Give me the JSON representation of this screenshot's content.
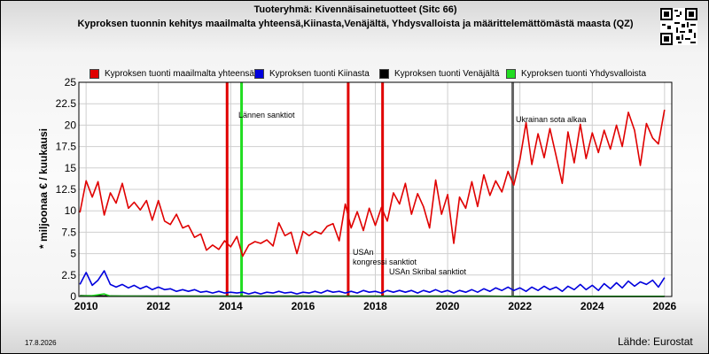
{
  "header": {
    "title_line1": "Tuoteryhmä: Kivennäisainetuotteet (Sitc 66)",
    "title_line2": "Kyproksen tuonnin kehitys maailmalta yhteensä,Kiinasta,Venäjältä, Yhdysvalloista ja määrittelemättömästä maasta (QZ)"
  },
  "footer": {
    "date": "17.8.2026",
    "source": "Lähde: Eurostat"
  },
  "qr_icon": "qr-code-icon",
  "chart_data": {
    "type": "line",
    "title": "Kyproksen tuonnin kehitys maailmalta yhteensä,Kiinasta,Venäjältä, Yhdysvalloista ja määrittelemättömästä maasta (QZ)",
    "ylabel": "* miljoonaa € / kuukausi",
    "xlim": [
      2009.8,
      2026.2
    ],
    "ylim": [
      0,
      25
    ],
    "x_ticks": [
      "2010",
      "2012",
      "2014",
      "2016",
      "2018",
      "2020",
      "2022",
      "2024",
      "2026"
    ],
    "y_ticks": [
      "0",
      "2.5",
      "5",
      "7.5",
      "10",
      "12.5",
      "15",
      "17.5",
      "20",
      "22.5",
      "25"
    ],
    "grid": true,
    "legend_position": "top",
    "annotations": [
      {
        "x": 2013.9,
        "label": "",
        "color": "#e00000"
      },
      {
        "x": 2014.3,
        "label": "Lännen sanktiot",
        "color": "#22dd22"
      },
      {
        "x": 2017.25,
        "label": "USAn\nkongressi sanktiot",
        "color": "#e00000"
      },
      {
        "x": 2018.2,
        "label": "USAn Skribal sanktiot",
        "color": "#e00000"
      },
      {
        "x": 2021.8,
        "label": "Ukrainan sota alkaa",
        "color": "#666666"
      }
    ],
    "series": [
      {
        "name": "Kyproksen tuonti maailmalta yhteensä",
        "color": "#e00000",
        "points": [
          [
            2009.83,
            9.8
          ],
          [
            2010.0,
            13.5
          ],
          [
            2010.17,
            11.6
          ],
          [
            2010.33,
            13.4
          ],
          [
            2010.5,
            9.5
          ],
          [
            2010.67,
            12.1
          ],
          [
            2010.83,
            10.9
          ],
          [
            2011.0,
            13.2
          ],
          [
            2011.17,
            10.3
          ],
          [
            2011.33,
            11.0
          ],
          [
            2011.5,
            10.1
          ],
          [
            2011.67,
            11.2
          ],
          [
            2011.83,
            8.9
          ],
          [
            2012.0,
            11.2
          ],
          [
            2012.17,
            8.8
          ],
          [
            2012.33,
            8.4
          ],
          [
            2012.5,
            9.6
          ],
          [
            2012.67,
            8.0
          ],
          [
            2012.83,
            8.3
          ],
          [
            2013.0,
            6.9
          ],
          [
            2013.17,
            7.3
          ],
          [
            2013.33,
            5.4
          ],
          [
            2013.5,
            6.0
          ],
          [
            2013.67,
            5.5
          ],
          [
            2013.83,
            6.5
          ],
          [
            2014.0,
            5.8
          ],
          [
            2014.17,
            7.0
          ],
          [
            2014.33,
            4.7
          ],
          [
            2014.5,
            6.0
          ],
          [
            2014.67,
            6.4
          ],
          [
            2014.83,
            6.2
          ],
          [
            2015.0,
            6.6
          ],
          [
            2015.17,
            5.9
          ],
          [
            2015.33,
            8.6
          ],
          [
            2015.5,
            7.1
          ],
          [
            2015.67,
            7.5
          ],
          [
            2015.83,
            5.0
          ],
          [
            2016.0,
            7.6
          ],
          [
            2016.17,
            7.1
          ],
          [
            2016.33,
            7.6
          ],
          [
            2016.5,
            7.3
          ],
          [
            2016.67,
            8.2
          ],
          [
            2016.83,
            8.5
          ],
          [
            2017.0,
            6.5
          ],
          [
            2017.17,
            10.8
          ],
          [
            2017.33,
            8.0
          ],
          [
            2017.5,
            9.9
          ],
          [
            2017.67,
            7.7
          ],
          [
            2017.83,
            10.3
          ],
          [
            2018.0,
            8.3
          ],
          [
            2018.17,
            10.4
          ],
          [
            2018.33,
            8.8
          ],
          [
            2018.5,
            12.1
          ],
          [
            2018.67,
            10.8
          ],
          [
            2018.83,
            13.2
          ],
          [
            2019.0,
            9.6
          ],
          [
            2019.17,
            12.0
          ],
          [
            2019.33,
            10.5
          ],
          [
            2019.5,
            8.0
          ],
          [
            2019.67,
            13.6
          ],
          [
            2019.83,
            9.6
          ],
          [
            2020.0,
            11.9
          ],
          [
            2020.17,
            6.2
          ],
          [
            2020.33,
            11.6
          ],
          [
            2020.5,
            10.3
          ],
          [
            2020.67,
            13.4
          ],
          [
            2020.83,
            10.5
          ],
          [
            2021.0,
            14.2
          ],
          [
            2021.17,
            11.8
          ],
          [
            2021.33,
            13.5
          ],
          [
            2021.5,
            12.2
          ],
          [
            2021.67,
            14.6
          ],
          [
            2021.83,
            13.0
          ],
          [
            2022.0,
            16.0
          ],
          [
            2022.17,
            20.3
          ],
          [
            2022.33,
            15.4
          ],
          [
            2022.5,
            19.0
          ],
          [
            2022.67,
            16.2
          ],
          [
            2022.83,
            19.6
          ],
          [
            2023.0,
            16.4
          ],
          [
            2023.17,
            13.2
          ],
          [
            2023.33,
            19.2
          ],
          [
            2023.5,
            15.6
          ],
          [
            2023.67,
            20.1
          ],
          [
            2023.83,
            16.1
          ],
          [
            2024.0,
            19.1
          ],
          [
            2024.17,
            16.8
          ],
          [
            2024.33,
            19.4
          ],
          [
            2024.5,
            17.2
          ],
          [
            2024.67,
            20.0
          ],
          [
            2024.83,
            17.5
          ],
          [
            2025.0,
            21.5
          ],
          [
            2025.17,
            19.4
          ],
          [
            2025.33,
            15.3
          ],
          [
            2025.5,
            20.2
          ],
          [
            2025.67,
            18.5
          ],
          [
            2025.83,
            17.8
          ],
          [
            2026.0,
            21.8
          ]
        ]
      },
      {
        "name": "Kyproksen tuonti Kiinasta",
        "color": "#0000dd",
        "points": [
          [
            2009.83,
            1.4
          ],
          [
            2010.0,
            2.8
          ],
          [
            2010.17,
            1.3
          ],
          [
            2010.33,
            1.9
          ],
          [
            2010.5,
            3.0
          ],
          [
            2010.67,
            1.4
          ],
          [
            2010.83,
            1.1
          ],
          [
            2011.0,
            1.4
          ],
          [
            2011.17,
            1.0
          ],
          [
            2011.33,
            1.3
          ],
          [
            2011.5,
            0.9
          ],
          [
            2011.67,
            1.2
          ],
          [
            2011.83,
            0.8
          ],
          [
            2012.0,
            1.1
          ],
          [
            2012.17,
            0.8
          ],
          [
            2012.33,
            0.9
          ],
          [
            2012.5,
            0.6
          ],
          [
            2012.67,
            0.8
          ],
          [
            2012.83,
            0.6
          ],
          [
            2013.0,
            0.8
          ],
          [
            2013.17,
            0.5
          ],
          [
            2013.33,
            0.6
          ],
          [
            2013.5,
            0.4
          ],
          [
            2013.67,
            0.6
          ],
          [
            2013.83,
            0.4
          ],
          [
            2014.0,
            0.5
          ],
          [
            2014.17,
            0.4
          ],
          [
            2014.33,
            0.5
          ],
          [
            2014.5,
            0.3
          ],
          [
            2014.67,
            0.5
          ],
          [
            2014.83,
            0.3
          ],
          [
            2015.0,
            0.5
          ],
          [
            2015.17,
            0.4
          ],
          [
            2015.33,
            0.6
          ],
          [
            2015.5,
            0.4
          ],
          [
            2015.67,
            0.5
          ],
          [
            2015.83,
            0.3
          ],
          [
            2016.0,
            0.5
          ],
          [
            2016.17,
            0.4
          ],
          [
            2016.33,
            0.6
          ],
          [
            2016.5,
            0.4
          ],
          [
            2016.67,
            0.7
          ],
          [
            2016.83,
            0.5
          ],
          [
            2017.0,
            0.6
          ],
          [
            2017.17,
            0.4
          ],
          [
            2017.33,
            0.6
          ],
          [
            2017.5,
            0.4
          ],
          [
            2017.67,
            0.7
          ],
          [
            2017.83,
            0.5
          ],
          [
            2018.0,
            0.6
          ],
          [
            2018.17,
            0.4
          ],
          [
            2018.33,
            0.7
          ],
          [
            2018.5,
            0.5
          ],
          [
            2018.67,
            0.7
          ],
          [
            2018.83,
            0.5
          ],
          [
            2019.0,
            0.7
          ],
          [
            2019.17,
            0.4
          ],
          [
            2019.33,
            0.7
          ],
          [
            2019.5,
            0.5
          ],
          [
            2019.67,
            0.8
          ],
          [
            2019.83,
            0.5
          ],
          [
            2020.0,
            0.7
          ],
          [
            2020.17,
            0.4
          ],
          [
            2020.33,
            0.7
          ],
          [
            2020.5,
            0.5
          ],
          [
            2020.67,
            0.8
          ],
          [
            2020.83,
            0.5
          ],
          [
            2021.0,
            0.9
          ],
          [
            2021.17,
            0.6
          ],
          [
            2021.33,
            1.0
          ],
          [
            2021.5,
            0.7
          ],
          [
            2021.67,
            1.1
          ],
          [
            2021.83,
            0.7
          ],
          [
            2022.0,
            1.0
          ],
          [
            2022.17,
            0.6
          ],
          [
            2022.33,
            1.1
          ],
          [
            2022.5,
            0.7
          ],
          [
            2022.67,
            1.2
          ],
          [
            2022.83,
            0.8
          ],
          [
            2023.0,
            1.1
          ],
          [
            2023.17,
            0.6
          ],
          [
            2023.33,
            1.2
          ],
          [
            2023.5,
            0.8
          ],
          [
            2023.67,
            1.4
          ],
          [
            2023.83,
            0.8
          ],
          [
            2024.0,
            1.3
          ],
          [
            2024.17,
            0.7
          ],
          [
            2024.33,
            1.5
          ],
          [
            2024.5,
            0.9
          ],
          [
            2024.67,
            1.6
          ],
          [
            2024.83,
            1.0
          ],
          [
            2025.0,
            1.8
          ],
          [
            2025.17,
            1.2
          ],
          [
            2025.33,
            1.7
          ],
          [
            2025.5,
            1.4
          ],
          [
            2025.67,
            1.9
          ],
          [
            2025.83,
            1.1
          ],
          [
            2026.0,
            2.2
          ]
        ]
      },
      {
        "name": "Kyproksen tuonti Venäjältä",
        "color": "#000000",
        "points": [
          [
            2009.83,
            0.1
          ],
          [
            2011.0,
            0.05
          ],
          [
            2012.0,
            0.05
          ],
          [
            2013.0,
            0.05
          ],
          [
            2014.0,
            0.05
          ],
          [
            2015.0,
            0.05
          ],
          [
            2016.0,
            0.05
          ],
          [
            2017.0,
            0.05
          ],
          [
            2018.0,
            0.05
          ],
          [
            2019.0,
            0.05
          ],
          [
            2020.0,
            0.05
          ],
          [
            2021.0,
            0.05
          ],
          [
            2022.0,
            0.0
          ],
          [
            2023.0,
            0.0
          ],
          [
            2024.0,
            0.0
          ],
          [
            2025.0,
            0.0
          ],
          [
            2026.0,
            0.0
          ]
        ]
      },
      {
        "name": "Kyproksen tuonti Yhdysvalloista",
        "color": "#22dd22",
        "points": [
          [
            2009.83,
            0.05
          ],
          [
            2010.17,
            0.1
          ],
          [
            2010.5,
            0.3
          ],
          [
            2010.67,
            0.05
          ],
          [
            2012.0,
            0.02
          ],
          [
            2014.0,
            0.02
          ],
          [
            2016.0,
            0.02
          ],
          [
            2018.0,
            0.02
          ],
          [
            2020.0,
            0.02
          ],
          [
            2022.0,
            0.02
          ],
          [
            2024.0,
            0.02
          ],
          [
            2026.0,
            0.02
          ]
        ]
      }
    ]
  }
}
